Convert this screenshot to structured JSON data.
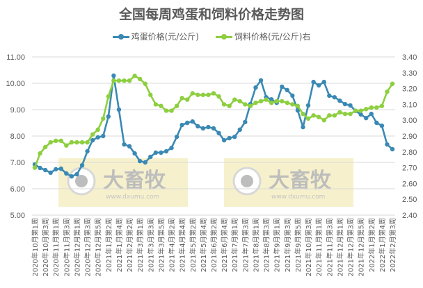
{
  "title": "全国每周鸡蛋和饲料价格走势图",
  "legend": {
    "egg_label": "鸡蛋价格(元/公斤)",
    "feed_label": "饲料价格(元/公斤)右"
  },
  "colors": {
    "egg": "#3A89B4",
    "feed": "#8DCF3F",
    "grid": "#D9D9D9",
    "watermark_bg": "#F5EFC3"
  },
  "watermark": {
    "brand": "大畜牧",
    "url": "www.dxumu.com"
  },
  "chart_data": {
    "type": "line",
    "title": "全国每周鸡蛋和饲料价格走势图",
    "xlabel": "",
    "ylabel": "鸡蛋价格(元/公斤)",
    "y2label": "饲料价格(元/公斤)",
    "ylim": [
      5.0,
      11.0
    ],
    "y2lim": [
      2.4,
      3.4
    ],
    "yticks": [
      "5.00",
      "6.00",
      "7.00",
      "8.00",
      "9.00",
      "10.00",
      "11.00"
    ],
    "y2ticks": [
      "2.40",
      "2.50",
      "2.60",
      "2.70",
      "2.80",
      "2.90",
      "3.00",
      "3.10",
      "3.20",
      "3.30",
      "3.40"
    ],
    "grid": true,
    "legend_position": "top",
    "x_tick_labels": [
      "2020年10月第1周",
      "2020年10月第3周",
      "2020年11月第1周",
      "2020年11月第3周",
      "2020年12月第1周",
      "2020年12月第3周",
      "2020年12月第5周",
      "2021年1月第2周",
      "2021年1月第4周",
      "2021年2月第2周",
      "2021年3月第1周",
      "2021年3月第3周",
      "2021年3月第5周",
      "2021年4月第2周",
      "2021年4月第4周",
      "2021年5月第2周",
      "2021年5月第4周",
      "2021年6月第2周",
      "2021年6月第4周",
      "2021年7月第1周",
      "2021年7月第3周",
      "2021年8月第1周",
      "2021年8月第3周",
      "2021年9月第1周",
      "2021年9月第3周",
      "2021年9月第5周",
      "2021年10月第3周",
      "2021年11月第1周",
      "2021年11月第3周",
      "2021年12月第1周",
      "2021年12月第3周",
      "2021年12月第5周",
      "2022年1月第2周",
      "2022年1月第4周",
      "2022年2月第3周"
    ],
    "series": [
      {
        "name": "鸡蛋价格(元/公斤)",
        "axis": "left",
        "values": [
          6.92,
          6.79,
          6.71,
          6.61,
          6.74,
          6.76,
          6.58,
          6.47,
          6.55,
          6.89,
          7.42,
          7.84,
          7.95,
          8.0,
          8.74,
          10.29,
          9.0,
          7.68,
          7.61,
          7.34,
          7.05,
          7.0,
          7.21,
          7.37,
          7.37,
          7.42,
          7.55,
          7.97,
          8.42,
          8.5,
          8.55,
          8.37,
          8.29,
          8.34,
          8.29,
          8.11,
          7.84,
          7.92,
          7.97,
          8.24,
          8.53,
          9.21,
          9.84,
          10.11,
          9.47,
          9.39,
          9.26,
          9.87,
          9.74,
          9.53,
          8.97,
          8.34,
          9.16,
          10.05,
          9.92,
          10.05,
          9.53,
          9.47,
          9.34,
          9.21,
          9.16,
          8.95,
          8.82,
          8.68,
          8.84,
          8.5,
          8.39,
          7.68,
          7.5
        ]
      },
      {
        "name": "饲料价格(元/公斤)右",
        "axis": "right",
        "values": [
          2.7,
          2.79,
          2.83,
          2.86,
          2.87,
          2.87,
          2.84,
          2.86,
          2.86,
          2.86,
          2.86,
          2.91,
          2.94,
          3.01,
          3.15,
          3.25,
          3.25,
          3.25,
          3.25,
          3.28,
          3.26,
          3.23,
          3.16,
          3.1,
          3.09,
          3.06,
          3.06,
          3.09,
          3.14,
          3.13,
          3.17,
          3.16,
          3.16,
          3.16,
          3.17,
          3.15,
          3.1,
          3.09,
          3.13,
          3.12,
          3.1,
          3.09,
          3.11,
          3.12,
          3.13,
          3.11,
          3.12,
          3.12,
          3.11,
          3.1,
          3.09,
          3.04,
          3.01,
          3.03,
          3.02,
          3.0,
          3.03,
          3.03,
          3.05,
          3.04,
          3.04,
          3.06,
          3.06,
          3.07,
          3.08,
          3.08,
          3.09,
          3.18,
          3.23
        ]
      }
    ]
  }
}
